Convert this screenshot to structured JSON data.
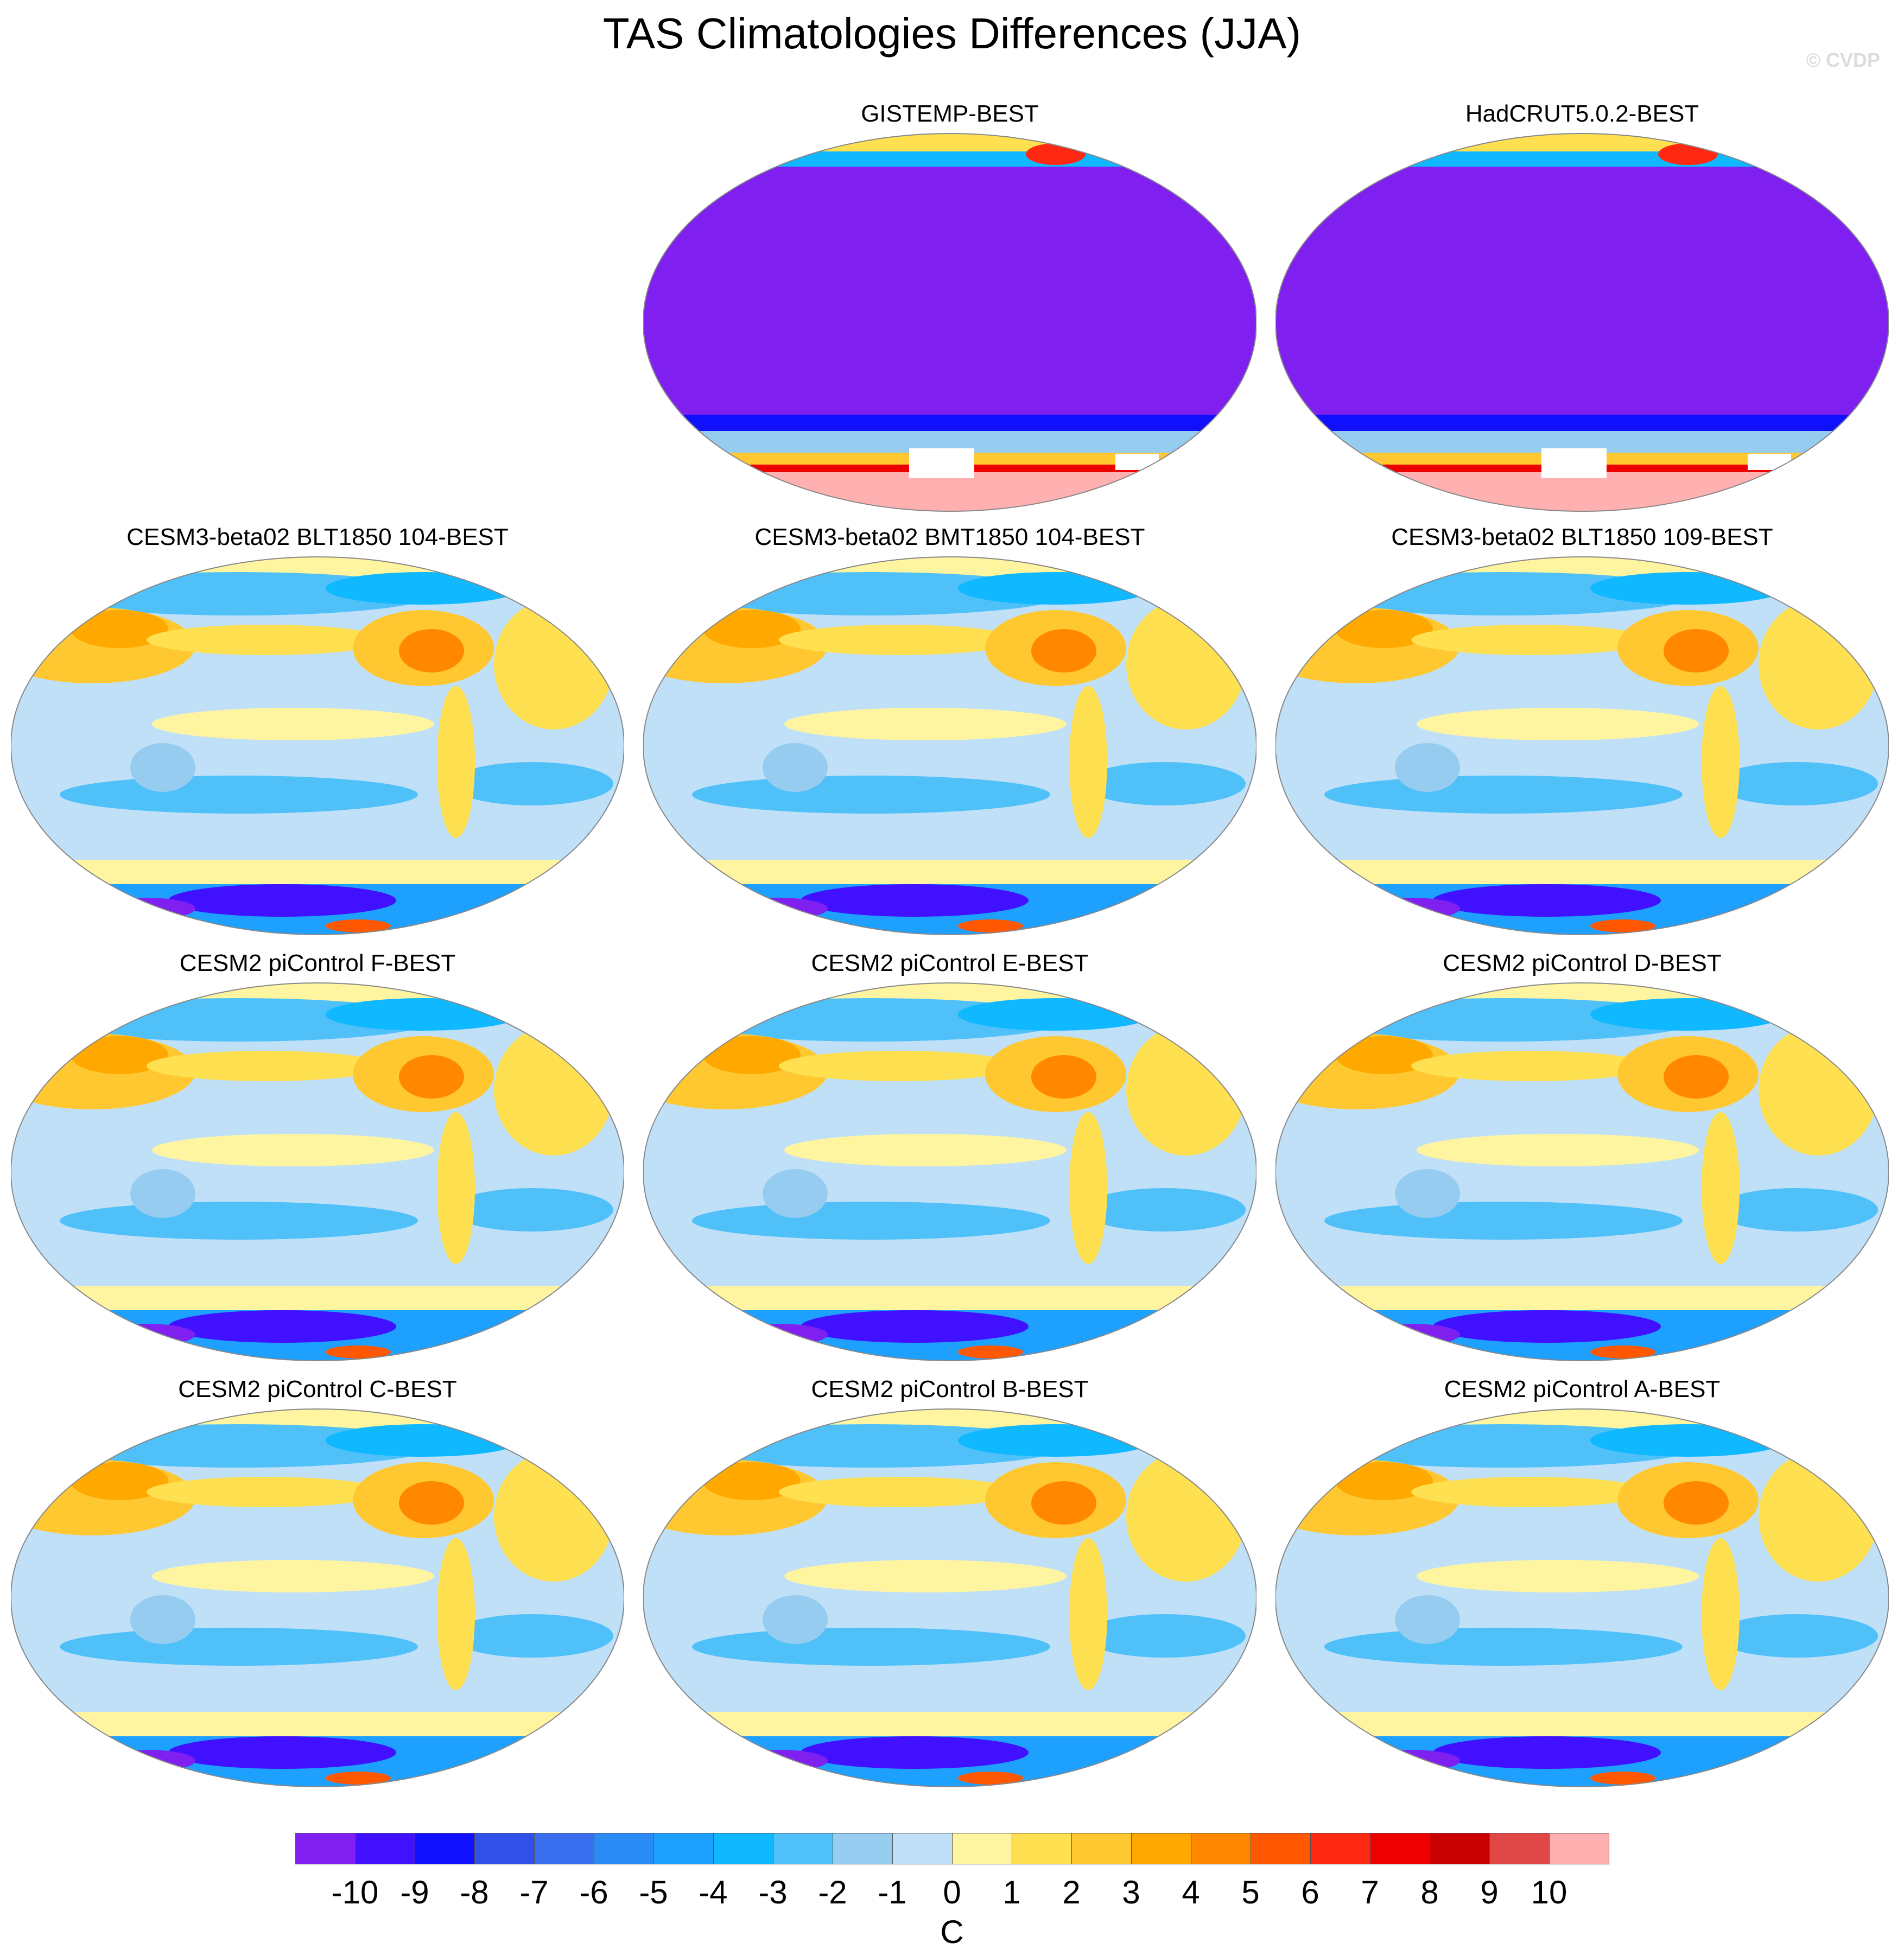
{
  "title": "TAS Climatologies Differences (JJA)",
  "watermark": "© CVDP",
  "colors": [
    "#8020f0",
    "#4010ff",
    "#1010ff",
    "#3050e8",
    "#3a70f0",
    "#2c8cf5",
    "#1ea0ff",
    "#10b8ff",
    "#50c0f8",
    "#96ccf0",
    "#c0e0f8",
    "#fff5a0",
    "#ffe050",
    "#ffc830",
    "#ffa800",
    "#ff8800",
    "#ff5800",
    "#ff2810",
    "#ee0000",
    "#c80000",
    "#e04848",
    "#ffb0b0"
  ],
  "colorbar": {
    "labels": [
      "-10",
      "-9",
      "-8",
      "-7",
      "-6",
      "-5",
      "-4",
      "-3",
      "-2",
      "-1",
      "0",
      "1",
      "2",
      "3",
      "4",
      "5",
      "6",
      "7",
      "8",
      "9",
      "10"
    ],
    "units": "C"
  },
  "chart_data": {
    "type": "heatmap",
    "title": "TAS Climatologies Differences (JJA)",
    "projection": "global map panels",
    "levels": [
      -10,
      -9,
      -8,
      -7,
      -6,
      -5,
      -4,
      -3,
      -2,
      -1,
      0,
      1,
      2,
      3,
      4,
      5,
      6,
      7,
      8,
      9,
      10
    ],
    "units": "C",
    "panels": [
      {
        "title": "GISTEMP-BEST",
        "style": "obs"
      },
      {
        "title": "HadCRUT5.0.2-BEST",
        "style": "obs"
      },
      {
        "title": "CESM3-beta02 BLT1850 104-BEST",
        "style": "model"
      },
      {
        "title": "CESM3-beta02 BMT1850 104-BEST",
        "style": "model"
      },
      {
        "title": "CESM3-beta02 BLT1850 109-BEST",
        "style": "model"
      },
      {
        "title": "CESM2 piControl F-BEST",
        "style": "model"
      },
      {
        "title": "CESM2 piControl E-BEST",
        "style": "model"
      },
      {
        "title": "CESM2 piControl D-BEST",
        "style": "model"
      },
      {
        "title": "CESM2 piControl C-BEST",
        "style": "model"
      },
      {
        "title": "CESM2 piControl B-BEST",
        "style": "model"
      },
      {
        "title": "CESM2 piControl A-BEST",
        "style": "model"
      }
    ]
  }
}
